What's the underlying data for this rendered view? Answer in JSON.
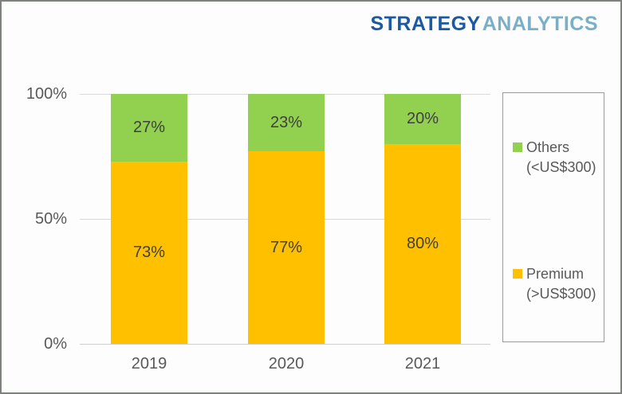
{
  "brand": {
    "part1": "STRATEGY",
    "part2": "ANALYTICS",
    "color1": "#1b5aa2",
    "color2": "#79b0c8"
  },
  "chart_data": {
    "type": "bar",
    "stacked": true,
    "categories": [
      "2019",
      "2020",
      "2021"
    ],
    "series": [
      {
        "name": "Premium (>US$300)",
        "color": "#FFC000",
        "values": [
          73,
          77,
          80
        ],
        "labels": [
          "73%",
          "77%",
          "80%"
        ]
      },
      {
        "name": "Others (<US$300)",
        "color": "#92D050",
        "values": [
          27,
          23,
          20
        ],
        "labels": [
          "27%",
          "23%",
          "20%"
        ]
      }
    ],
    "y_axis": {
      "min": 0,
      "max": 100,
      "ticks": [
        {
          "label": "0%",
          "value": 0
        },
        {
          "label": "50%",
          "value": 50
        },
        {
          "label": "100%",
          "value": 100
        }
      ]
    },
    "grid": true,
    "legend_position": "right",
    "legend": [
      {
        "label_line1": "Others",
        "label_line2": "(<US$300)",
        "color": "#92D050"
      },
      {
        "label_line1": "Premium",
        "label_line2": "(>US$300)",
        "color": "#FFC000"
      }
    ]
  }
}
